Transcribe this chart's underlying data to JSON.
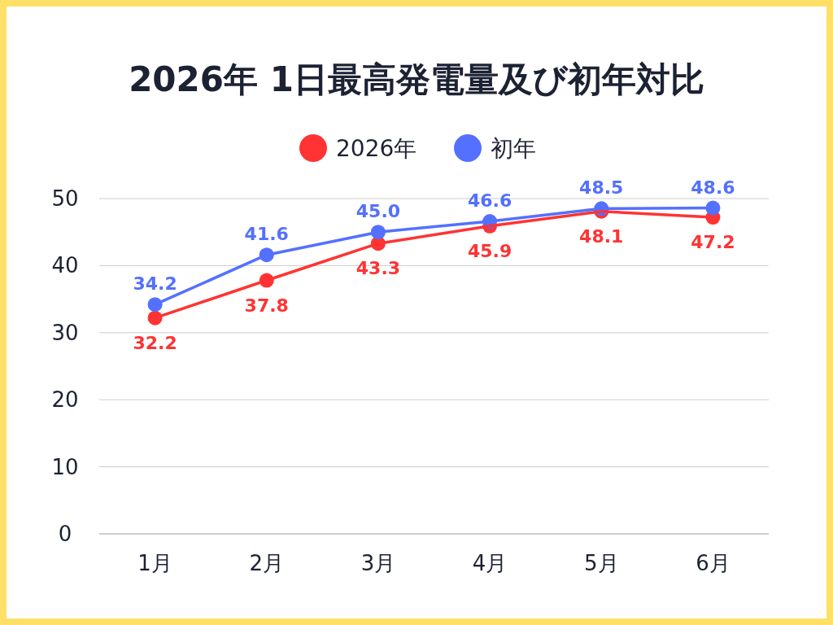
{
  "chart_data": {
    "type": "line",
    "title": "2026年 1日最高発電量及び初年対比",
    "categories": [
      "1月",
      "2月",
      "3月",
      "4月",
      "5月",
      "6月"
    ],
    "series": [
      {
        "name": "2026年",
        "color": "#ff3333",
        "values": [
          32.2,
          37.8,
          43.3,
          45.9,
          48.1,
          47.2
        ],
        "value_labels": [
          "32.2",
          "37.8",
          "43.3",
          "45.9",
          "48.1",
          "47.2"
        ]
      },
      {
        "name": "初年",
        "color": "#5470ff",
        "values": [
          34.2,
          41.6,
          45.0,
          46.6,
          48.5,
          48.6
        ],
        "value_labels": [
          "34.2",
          "41.6",
          "45.0",
          "46.6",
          "48.5",
          "48.6"
        ]
      }
    ],
    "ylim": [
      0,
      50
    ],
    "yticks": [
      0,
      10,
      20,
      30,
      40,
      50
    ],
    "grid": "y",
    "legend": "top",
    "marker": "circle",
    "line_style": "solid"
  }
}
